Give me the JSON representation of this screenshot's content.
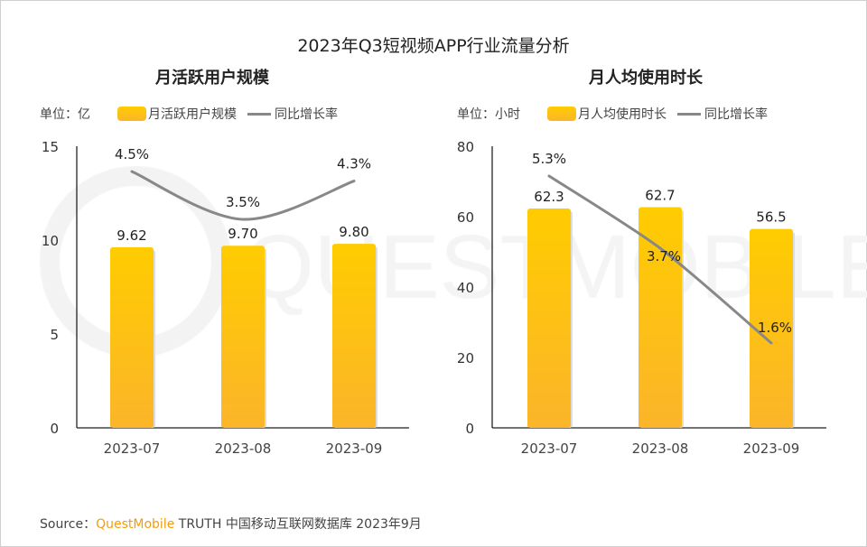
{
  "title": "2023年Q3短视频APP行业流量分析",
  "source": {
    "prefix": "Source：",
    "brand": "QuestMobile",
    "text": "TRUTH 中国移动互联网数据库 2023年9月"
  },
  "watermark": "QUESTMOBILE",
  "colors": {
    "bar_top": "#ffcc00",
    "bar_bottom": "#fbb52a",
    "line": "#888888"
  },
  "chart_data": [
    {
      "type": "bar+line",
      "title": "月活跃用户规模",
      "unit_label": "单位：亿",
      "categories": [
        "2023-07",
        "2023-08",
        "2023-09"
      ],
      "series": [
        {
          "name": "月活跃用户规模",
          "type": "bar",
          "values": [
            9.62,
            9.7,
            9.8
          ],
          "labels": [
            "9.62",
            "9.70",
            "9.80"
          ]
        },
        {
          "name": "同比增长率",
          "type": "line",
          "values": [
            4.5,
            3.5,
            4.3
          ],
          "labels": [
            "4.5%",
            "3.5%",
            "4.3%"
          ]
        }
      ],
      "ylim": [
        0,
        15
      ],
      "yticks": [
        "0",
        "5",
        "10",
        "15"
      ],
      "legend": "top"
    },
    {
      "type": "bar+line",
      "title": "月人均使用时长",
      "unit_label": "单位：小时",
      "categories": [
        "2023-07",
        "2023-08",
        "2023-09"
      ],
      "series": [
        {
          "name": "月人均使用时长",
          "type": "bar",
          "values": [
            62.3,
            62.7,
            56.5
          ],
          "labels": [
            "62.3",
            "62.7",
            "56.5"
          ]
        },
        {
          "name": "同比增长率",
          "type": "line",
          "values": [
            5.3,
            3.7,
            1.6
          ],
          "labels": [
            "5.3%",
            "3.7%",
            "1.6%"
          ]
        }
      ],
      "ylim": [
        0,
        80
      ],
      "yticks": [
        "0",
        "20",
        "40",
        "60",
        "80"
      ],
      "legend": "top"
    }
  ]
}
